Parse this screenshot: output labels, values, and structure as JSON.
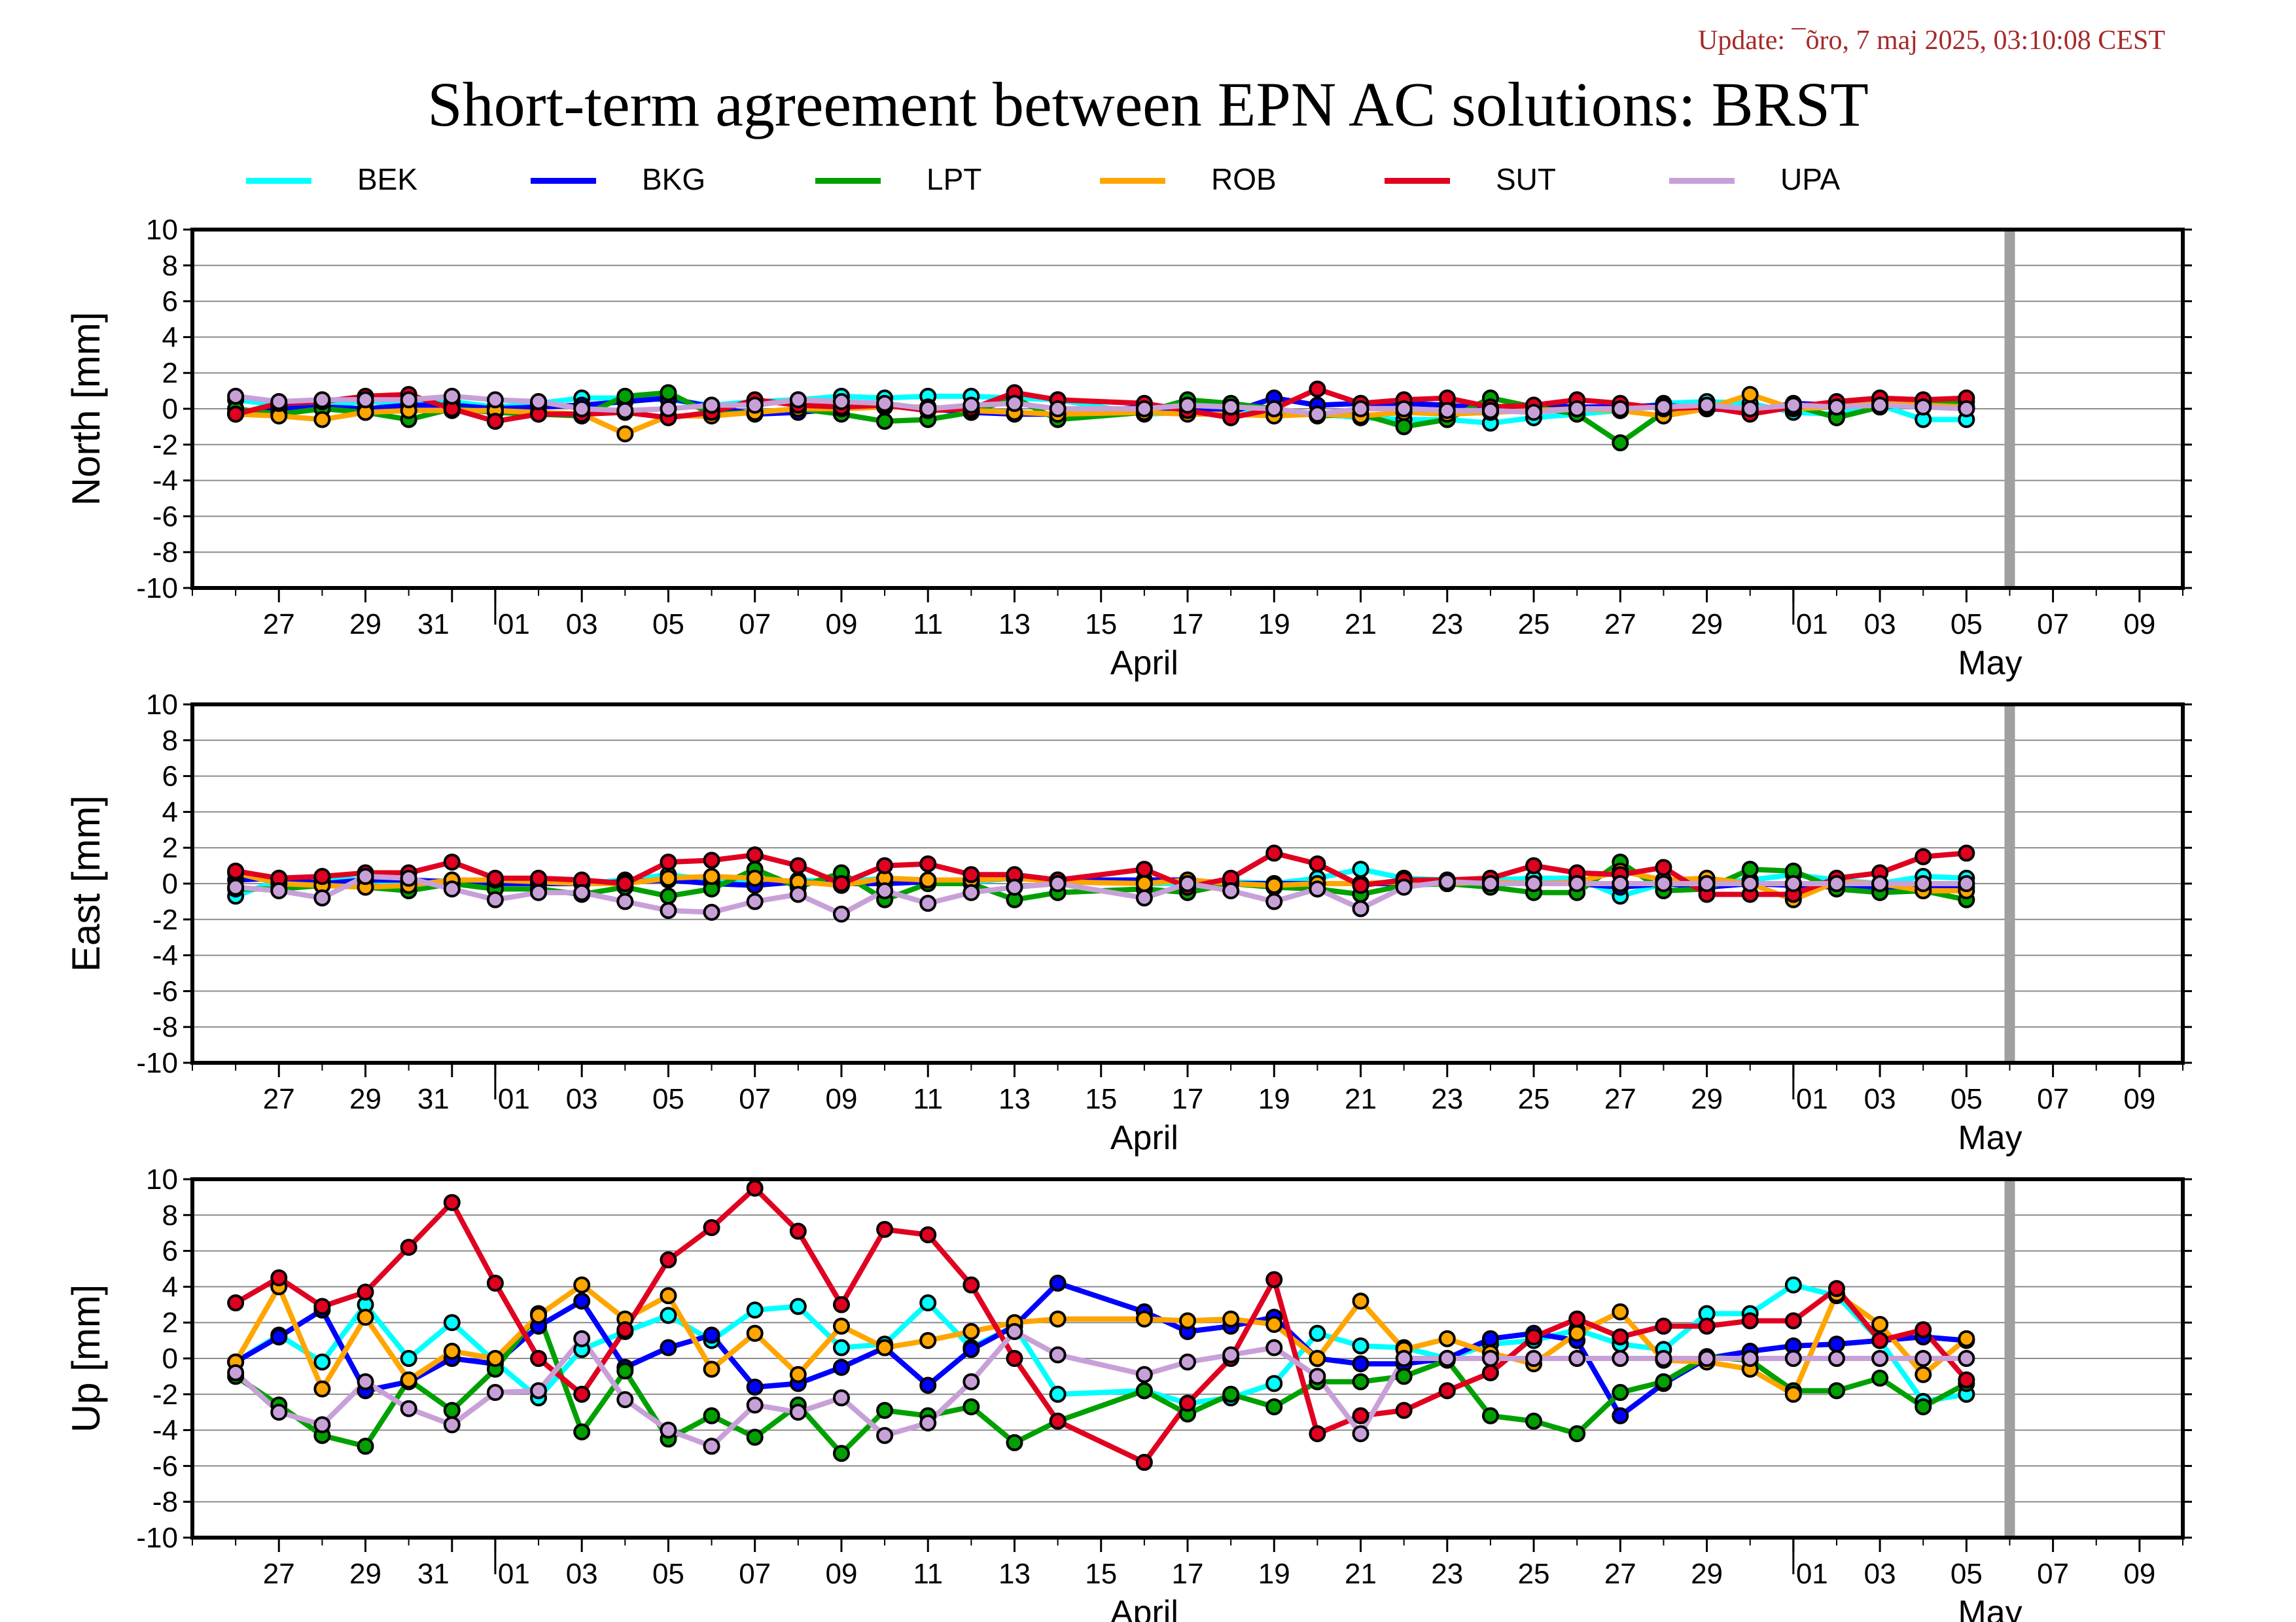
{
  "header": {
    "update": "Update: ¯õro, 7 maj 2025, 03:10:08 CEST",
    "title": "Short-term agreement between EPN AC solutions: BRST"
  },
  "legend": [
    {
      "name": "BEK",
      "color": "#00ffff"
    },
    {
      "name": "BKG",
      "color": "#0000ff"
    },
    {
      "name": "LPT",
      "color": "#00a000"
    },
    {
      "name": "ROB",
      "color": "#ffa500"
    },
    {
      "name": "SUT",
      "color": "#e00020"
    },
    {
      "name": "UPA",
      "color": "#c8a0d8"
    }
  ],
  "chart_data": [
    {
      "type": "line",
      "ylabel": "North [mm]",
      "ylim": [
        -10,
        10
      ],
      "yticks": [
        10,
        8,
        6,
        4,
        2,
        0,
        -2,
        -4,
        -6,
        -8,
        -10
      ],
      "xlim": [
        "2025-03-25",
        "2025-05-10"
      ],
      "xtick_labels": [
        "27",
        "29",
        "31",
        "01",
        "03",
        "05",
        "07",
        "09",
        "11",
        "13",
        "15",
        "17",
        "19",
        "21",
        "23",
        "25",
        "27",
        "29",
        "01",
        "03",
        "05",
        "07",
        "09"
      ],
      "month_labels": [
        "April",
        "May"
      ],
      "marker_date": "2025-05-06",
      "grid": true,
      "x": [
        "2025-03-26",
        "2025-03-27",
        "2025-03-28",
        "2025-03-29",
        "2025-03-30",
        "2025-03-31",
        "2025-04-01",
        "2025-04-02",
        "2025-04-03",
        "2025-04-04",
        "2025-04-05",
        "2025-04-06",
        "2025-04-07",
        "2025-04-08",
        "2025-04-09",
        "2025-04-10",
        "2025-04-11",
        "2025-04-12",
        "2025-04-13",
        "2025-04-14",
        "2025-04-16",
        "2025-04-17",
        "2025-04-18",
        "2025-04-19",
        "2025-04-20",
        "2025-04-21",
        "2025-04-22",
        "2025-04-23",
        "2025-04-24",
        "2025-04-25",
        "2025-04-26",
        "2025-04-27",
        "2025-04-28",
        "2025-04-29",
        "2025-04-30",
        "2025-05-01",
        "2025-05-02",
        "2025-05-03",
        "2025-05-04",
        "2025-05-05"
      ],
      "series": [
        {
          "name": "BEK",
          "values": [
            0.5,
            0.2,
            0.2,
            0.4,
            0.3,
            0.4,
            0.1,
            0.3,
            0.6,
            0.6,
            0.5,
            0.2,
            0.4,
            0.5,
            0.7,
            0.6,
            0.7,
            0.7,
            0.6,
            0.5,
            -0.3,
            -0.2,
            -0.1,
            0.0,
            -0.3,
            -0.5,
            -0.6,
            -0.6,
            -0.8,
            -0.5,
            -0.3,
            -0.1,
            0.3,
            0.4,
            0.3,
            -0.2,
            -0.3,
            0.2,
            -0.6,
            -0.6
          ]
        },
        {
          "name": "BKG",
          "values": [
            -0.2,
            0.0,
            0.1,
            0.0,
            0.2,
            0.2,
            0.0,
            0.1,
            0.2,
            0.4,
            0.6,
            0.1,
            -0.3,
            -0.2,
            0.0,
            0.2,
            0.0,
            -0.2,
            -0.3,
            -0.3,
            0.1,
            -0.1,
            -0.2,
            0.6,
            0.2,
            0.3,
            0.3,
            0.2,
            0.0,
            0.2,
            0.1,
            0.1,
            0.2,
            0.0,
            -0.1,
            0.3,
            0.2,
            0.4,
            0.2,
            0.1
          ]
        },
        {
          "name": "LPT",
          "values": [
            0.0,
            -0.3,
            0.0,
            -0.2,
            -0.6,
            0.0,
            -0.2,
            -0.3,
            -0.4,
            0.7,
            0.9,
            -0.3,
            -0.2,
            0.0,
            -0.3,
            -0.7,
            -0.6,
            -0.2,
            0.6,
            -0.6,
            -0.2,
            0.5,
            0.3,
            0.0,
            -0.4,
            -0.3,
            -1.0,
            -0.6,
            0.6,
            0.1,
            -0.3,
            -1.9,
            -0.2,
            0.1,
            -0.1,
            0.2,
            -0.5,
            0.1,
            0.3,
            0.4
          ]
        },
        {
          "name": "ROB",
          "values": [
            -0.3,
            -0.4,
            -0.6,
            -0.2,
            -0.1,
            -0.1,
            -0.1,
            -0.2,
            -0.3,
            -1.4,
            -0.4,
            -0.4,
            -0.2,
            0.0,
            0.0,
            0.1,
            0.1,
            -0.1,
            -0.2,
            -0.3,
            -0.2,
            -0.3,
            -0.3,
            -0.4,
            -0.3,
            -0.4,
            -0.2,
            -0.3,
            -0.2,
            -0.1,
            0.0,
            -0.1,
            -0.4,
            0.0,
            0.8,
            0.0,
            0.1,
            0.3,
            0.2,
            0.1
          ]
        },
        {
          "name": "SUT",
          "values": [
            -0.3,
            0.3,
            0.4,
            0.7,
            0.8,
            0.0,
            -0.7,
            -0.3,
            -0.3,
            -0.2,
            -0.5,
            -0.2,
            0.5,
            0.2,
            0.1,
            0.2,
            -0.1,
            0.0,
            0.9,
            0.5,
            0.3,
            -0.1,
            -0.5,
            0.0,
            1.1,
            0.3,
            0.5,
            0.6,
            0.1,
            0.2,
            0.5,
            0.3,
            0.0,
            0.1,
            -0.3,
            0.1,
            0.4,
            0.6,
            0.5,
            0.6
          ]
        },
        {
          "name": "UPA",
          "values": [
            0.7,
            0.4,
            0.5,
            0.5,
            0.5,
            0.7,
            0.5,
            0.4,
            0.0,
            -0.1,
            0.0,
            0.2,
            0.2,
            0.5,
            0.4,
            0.3,
            0.0,
            0.2,
            0.3,
            0.0,
            0.0,
            0.2,
            0.1,
            0.0,
            -0.3,
            0.0,
            0.0,
            -0.1,
            -0.1,
            -0.2,
            0.0,
            0.0,
            0.1,
            0.2,
            0.0,
            0.2,
            0.1,
            0.2,
            0.1,
            0.0
          ]
        }
      ]
    },
    {
      "type": "line",
      "ylabel": "East [mm]",
      "ylim": [
        -10,
        10
      ],
      "yticks": [
        10,
        8,
        6,
        4,
        2,
        0,
        -2,
        -4,
        -6,
        -8,
        -10
      ],
      "xlim": [
        "2025-03-25",
        "2025-05-10"
      ],
      "xtick_labels": [
        "27",
        "29",
        "31",
        "01",
        "03",
        "05",
        "07",
        "09",
        "11",
        "13",
        "15",
        "17",
        "19",
        "21",
        "23",
        "25",
        "27",
        "29",
        "01",
        "03",
        "05",
        "07",
        "09"
      ],
      "month_labels": [
        "April",
        "May"
      ],
      "marker_date": "2025-05-06",
      "grid": true,
      "x": [
        "2025-03-26",
        "2025-03-27",
        "2025-03-28",
        "2025-03-29",
        "2025-03-30",
        "2025-03-31",
        "2025-04-01",
        "2025-04-02",
        "2025-04-03",
        "2025-04-04",
        "2025-04-05",
        "2025-04-06",
        "2025-04-07",
        "2025-04-08",
        "2025-04-09",
        "2025-04-10",
        "2025-04-11",
        "2025-04-12",
        "2025-04-13",
        "2025-04-14",
        "2025-04-16",
        "2025-04-17",
        "2025-04-18",
        "2025-04-19",
        "2025-04-20",
        "2025-04-21",
        "2025-04-22",
        "2025-04-23",
        "2025-04-24",
        "2025-04-25",
        "2025-04-26",
        "2025-04-27",
        "2025-04-28",
        "2025-04-29",
        "2025-04-30",
        "2025-05-01",
        "2025-05-02",
        "2025-05-03",
        "2025-05-04",
        "2025-05-05"
      ],
      "series": [
        {
          "name": "BEK",
          "values": [
            -0.7,
            0.2,
            0.3,
            0.2,
            0.0,
            0.2,
            0.2,
            0.1,
            0.0,
            0.2,
            0.5,
            0.2,
            0.0,
            0.2,
            0.1,
            0.3,
            0.2,
            0.1,
            0.3,
            0.2,
            0.0,
            0.0,
            0.1,
            0.0,
            0.3,
            0.8,
            0.3,
            0.2,
            0.2,
            0.3,
            0.3,
            -0.7,
            0.0,
            0.1,
            0.2,
            0.5,
            0.2,
            0.0,
            0.4,
            0.3
          ]
        },
        {
          "name": "BKG",
          "values": [
            0.2,
            0.3,
            0.0,
            0.2,
            0.2,
            0.1,
            0.0,
            0.0,
            0.0,
            0.1,
            0.2,
            0.0,
            -0.1,
            0.1,
            0.0,
            0.0,
            0.1,
            0.2,
            0.3,
            0.2,
            0.2,
            0.2,
            0.0,
            0.0,
            0.0,
            0.0,
            0.0,
            0.0,
            0.0,
            0.0,
            0.0,
            -0.2,
            0.0,
            -0.2,
            0.0,
            -0.1,
            -0.2,
            -0.3,
            -0.2,
            -0.2
          ]
        },
        {
          "name": "LPT",
          "values": [
            -0.3,
            -0.3,
            -0.1,
            -0.2,
            -0.4,
            0.0,
            -0.3,
            -0.3,
            -0.6,
            -0.2,
            -0.7,
            -0.3,
            0.8,
            -0.2,
            0.6,
            -0.9,
            0.0,
            0.0,
            -0.9,
            -0.5,
            -0.3,
            -0.5,
            0.0,
            -0.2,
            -0.3,
            -0.6,
            -0.1,
            0.0,
            -0.2,
            -0.5,
            -0.5,
            1.2,
            -0.4,
            -0.3,
            0.8,
            0.7,
            -0.3,
            -0.5,
            -0.4,
            -0.9
          ]
        },
        {
          "name": "ROB",
          "values": [
            0.6,
            0.0,
            -0.1,
            -0.2,
            -0.1,
            0.2,
            0.2,
            0.1,
            0.0,
            0.0,
            0.3,
            0.4,
            0.3,
            0.1,
            -0.1,
            0.3,
            0.2,
            0.2,
            0.3,
            0.1,
            0.0,
            0.2,
            0.0,
            -0.1,
            0.0,
            0.0,
            0.1,
            0.0,
            0.1,
            0.0,
            0.1,
            0.7,
            0.2,
            0.3,
            0.0,
            -0.9,
            0.1,
            0.0,
            -0.4,
            -0.4
          ]
        },
        {
          "name": "SUT",
          "values": [
            0.7,
            0.3,
            0.4,
            0.6,
            0.6,
            1.2,
            0.3,
            0.3,
            0.2,
            0.0,
            1.2,
            1.3,
            1.6,
            1.0,
            0.0,
            1.0,
            1.1,
            0.5,
            0.5,
            0.2,
            0.8,
            -0.2,
            0.3,
            1.7,
            1.1,
            -0.1,
            0.2,
            0.2,
            0.3,
            1.0,
            0.6,
            0.5,
            0.9,
            -0.6,
            -0.6,
            -0.6,
            0.3,
            0.6,
            1.5,
            1.7
          ]
        },
        {
          "name": "UPA",
          "values": [
            -0.2,
            -0.4,
            -0.8,
            0.4,
            0.3,
            -0.3,
            -0.9,
            -0.5,
            -0.5,
            -1.0,
            -1.5,
            -1.6,
            -1.0,
            -0.6,
            -1.7,
            -0.4,
            -1.1,
            -0.5,
            -0.2,
            0.0,
            -0.8,
            0.0,
            -0.4,
            -1.0,
            -0.3,
            -1.4,
            -0.2,
            0.1,
            0.0,
            0.0,
            0.0,
            0.0,
            0.0,
            0.0,
            0.0,
            0.0,
            0.0,
            0.0,
            0.0,
            0.0
          ]
        }
      ]
    },
    {
      "type": "line",
      "ylabel": "Up [mm]",
      "ylim": [
        -10,
        10
      ],
      "yticks": [
        10,
        8,
        6,
        4,
        2,
        0,
        -2,
        -4,
        -6,
        -8,
        -10
      ],
      "xlim": [
        "2025-03-25",
        "2025-05-10"
      ],
      "xtick_labels": [
        "27",
        "29",
        "31",
        "01",
        "03",
        "05",
        "07",
        "09",
        "11",
        "13",
        "15",
        "17",
        "19",
        "21",
        "23",
        "25",
        "27",
        "29",
        "01",
        "03",
        "05",
        "07",
        "09"
      ],
      "month_labels": [
        "April",
        "May"
      ],
      "marker_date": "2025-05-06",
      "grid": true,
      "x": [
        "2025-03-26",
        "2025-03-27",
        "2025-03-28",
        "2025-03-29",
        "2025-03-30",
        "2025-03-31",
        "2025-04-01",
        "2025-04-02",
        "2025-04-03",
        "2025-04-04",
        "2025-04-05",
        "2025-04-06",
        "2025-04-07",
        "2025-04-08",
        "2025-04-09",
        "2025-04-10",
        "2025-04-11",
        "2025-04-12",
        "2025-04-13",
        "2025-04-14",
        "2025-04-16",
        "2025-04-17",
        "2025-04-18",
        "2025-04-19",
        "2025-04-20",
        "2025-04-21",
        "2025-04-22",
        "2025-04-23",
        "2025-04-24",
        "2025-04-25",
        "2025-04-26",
        "2025-04-27",
        "2025-04-28",
        "2025-04-29",
        "2025-04-30",
        "2025-05-01",
        "2025-05-02",
        "2025-05-03",
        "2025-05-04",
        "2025-05-05"
      ],
      "series": [
        {
          "name": "BEK",
          "values": [
            -0.2,
            1.3,
            -0.2,
            3.0,
            0.0,
            2.0,
            -0.2,
            -2.2,
            0.5,
            1.5,
            2.4,
            1.0,
            2.7,
            2.9,
            0.6,
            0.8,
            3.1,
            0.6,
            1.8,
            -2.0,
            -1.8,
            -2.5,
            -2.2,
            -1.4,
            1.4,
            0.7,
            0.6,
            0.0,
            0.8,
            1.0,
            1.6,
            0.8,
            0.5,
            2.5,
            2.5,
            4.1,
            3.5,
            1.0,
            -2.4,
            -2.0
          ]
        },
        {
          "name": "BKG",
          "values": [
            -0.2,
            1.2,
            2.7,
            -1.8,
            -1.3,
            0.0,
            -0.3,
            1.8,
            3.2,
            -0.5,
            0.6,
            1.3,
            -1.6,
            -1.4,
            -0.5,
            0.6,
            -1.5,
            0.5,
            1.8,
            4.2,
            2.6,
            1.5,
            1.8,
            2.3,
            0.0,
            -0.3,
            -0.3,
            0.0,
            1.1,
            1.4,
            1.0,
            -3.2,
            -1.4,
            0.0,
            0.4,
            0.7,
            0.8,
            1.0,
            1.2,
            1.0
          ]
        },
        {
          "name": "LPT",
          "values": [
            -1.0,
            -2.6,
            -4.3,
            -4.9,
            -1.2,
            -2.9,
            -0.6,
            2.5,
            -4.1,
            -0.7,
            -4.5,
            -3.2,
            -4.4,
            -2.6,
            -5.3,
            -2.9,
            -3.2,
            -2.7,
            -4.7,
            -3.5,
            -1.8,
            -3.1,
            -2.0,
            -2.7,
            -1.3,
            -1.3,
            -1.0,
            -0.1,
            -3.2,
            -3.5,
            -4.2,
            -1.9,
            -1.3,
            0.1,
            -0.1,
            -1.8,
            -1.8,
            -1.1,
            -2.7,
            -1.4
          ]
        },
        {
          "name": "ROB",
          "values": [
            -0.2,
            4.0,
            -1.7,
            2.3,
            -1.2,
            0.4,
            0.0,
            2.4,
            4.1,
            2.2,
            3.5,
            -0.6,
            1.4,
            -0.9,
            1.8,
            0.6,
            1.0,
            1.5,
            2.0,
            2.2,
            2.2,
            2.1,
            2.2,
            1.9,
            0.0,
            3.2,
            0.5,
            1.1,
            0.3,
            -0.3,
            1.4,
            2.6,
            -0.1,
            -0.2,
            -0.6,
            -2.0,
            3.6,
            1.9,
            -0.9,
            1.1
          ]
        },
        {
          "name": "SUT",
          "values": [
            3.1,
            4.5,
            2.9,
            3.7,
            6.2,
            8.7,
            4.2,
            0.0,
            -2.0,
            1.6,
            5.5,
            7.3,
            9.5,
            7.1,
            3.0,
            7.2,
            6.9,
            4.1,
            0.0,
            -3.5,
            -5.8,
            -2.5,
            0.0,
            4.4,
            -4.2,
            -3.2,
            -2.9,
            -1.8,
            -0.8,
            1.2,
            2.2,
            1.2,
            1.8,
            1.8,
            2.1,
            2.1,
            3.9,
            1.0,
            1.6,
            -1.2
          ]
        },
        {
          "name": "UPA",
          "values": [
            -0.8,
            -3.0,
            -3.7,
            -1.3,
            -2.8,
            -3.7,
            -1.9,
            -1.8,
            1.1,
            -2.3,
            -4.0,
            -4.9,
            -2.6,
            -3.0,
            -2.2,
            -4.3,
            -3.6,
            -1.3,
            1.5,
            0.2,
            -0.9,
            -0.2,
            0.2,
            0.6,
            -1.0,
            -4.2,
            0.0,
            0.0,
            0.0,
            0.0,
            0.0,
            0.0,
            0.0,
            0.0,
            0.0,
            0.0,
            0.0,
            0.0,
            0.0,
            0.0
          ]
        }
      ]
    }
  ]
}
